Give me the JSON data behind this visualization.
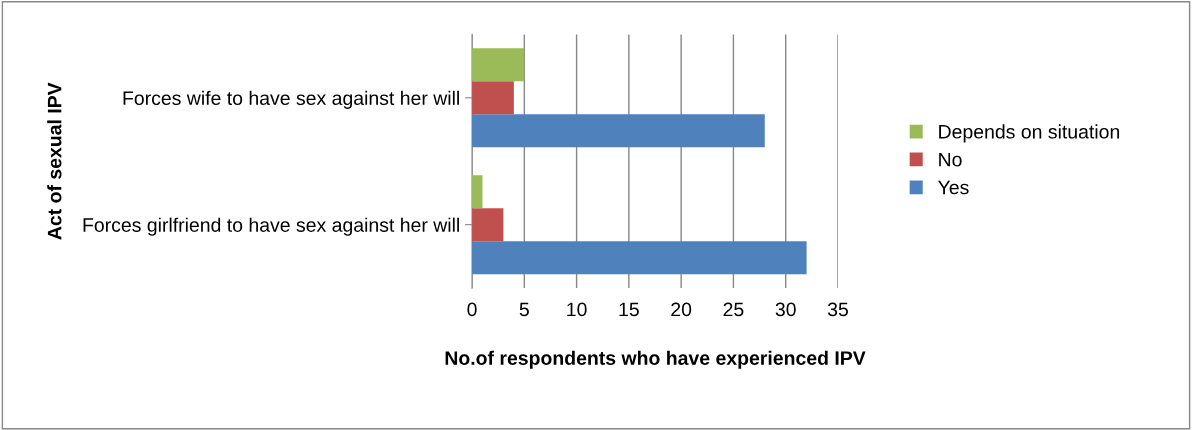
{
  "chart_data": {
    "type": "bar",
    "orientation": "horizontal",
    "ylabel": "Act of sexual IPV",
    "xlabel": "No.of respondents who have experienced IPV",
    "categories": [
      "Forces wife to have sex against her will",
      "Forces girlfriend to have sex against her will"
    ],
    "series": [
      {
        "name": "Yes",
        "color": "#4f81bd",
        "values": [
          28,
          32
        ]
      },
      {
        "name": "No",
        "color": "#c0504d",
        "values": [
          4,
          3
        ]
      },
      {
        "name": "Depends on situation",
        "color": "#9bbb59",
        "values": [
          5,
          1
        ]
      }
    ],
    "xlim": [
      0,
      35
    ],
    "xticks": [
      0,
      5,
      10,
      15,
      20,
      25,
      30,
      35
    ],
    "grid": "x",
    "legend": "right"
  }
}
